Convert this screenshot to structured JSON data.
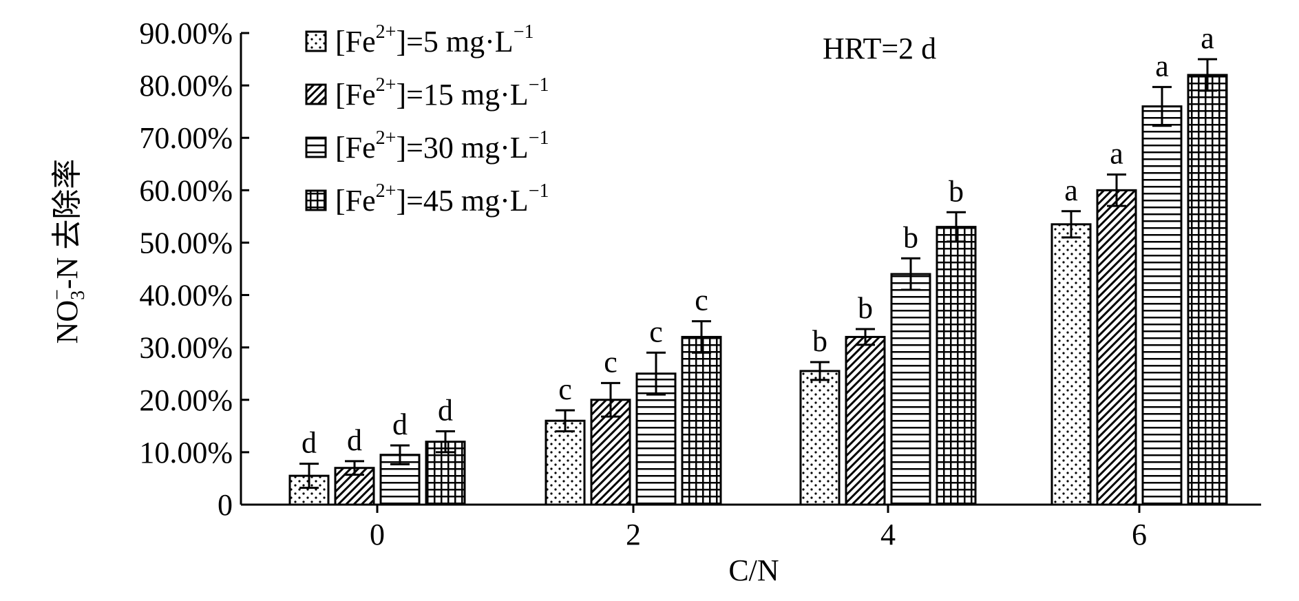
{
  "chart_data": {
    "type": "bar",
    "annotation": "HRT=2 d",
    "xlabel": "C/N",
    "ylabel": {
      "prefix": "NO",
      "sub": "3",
      "sup": "−",
      "suffix": "-N 去除率"
    },
    "categories": [
      "0",
      "2",
      "4",
      "6"
    ],
    "ylim": [
      0,
      0.9
    ],
    "yticks": [
      {
        "value": 0,
        "label": "0"
      },
      {
        "value": 0.1,
        "label": "10.00%"
      },
      {
        "value": 0.2,
        "label": "20.00%"
      },
      {
        "value": 0.3,
        "label": "30.00%"
      },
      {
        "value": 0.4,
        "label": "40.00%"
      },
      {
        "value": 0.5,
        "label": "50.00%"
      },
      {
        "value": 0.6,
        "label": "60.00%"
      },
      {
        "value": 0.7,
        "label": "70.00%"
      },
      {
        "value": 0.8,
        "label": "80.00%"
      },
      {
        "value": 0.9,
        "label": "90.00%"
      }
    ],
    "legend_placement": "top-left",
    "series": [
      {
        "legend": {
          "pre": "[Fe",
          "sup1": "2+",
          "mid": "]=5 mg·L",
          "sup2": "−1"
        },
        "pattern": "dots",
        "values": [
          0.055,
          0.16,
          0.255,
          0.535
        ],
        "errors": [
          0.023,
          0.02,
          0.017,
          0.025
        ],
        "letters": [
          "d",
          "c",
          "b",
          "a"
        ]
      },
      {
        "legend": {
          "pre": "[Fe",
          "sup1": "2+",
          "mid": "]=15 mg·L",
          "sup2": "−1"
        },
        "pattern": "diagonal",
        "values": [
          0.07,
          0.2,
          0.32,
          0.6
        ],
        "errors": [
          0.013,
          0.032,
          0.015,
          0.03
        ],
        "letters": [
          "d",
          "c",
          "b",
          "a"
        ]
      },
      {
        "legend": {
          "pre": "[Fe",
          "sup1": "2+",
          "mid": "]=30 mg·L",
          "sup2": "−1"
        },
        "pattern": "horizontal",
        "values": [
          0.095,
          0.25,
          0.44,
          0.76
        ],
        "errors": [
          0.018,
          0.04,
          0.03,
          0.037
        ],
        "letters": [
          "d",
          "c",
          "b",
          "a"
        ]
      },
      {
        "legend": {
          "pre": "[Fe",
          "sup1": "2+",
          "mid": "]=45 mg·L",
          "sup2": "−1"
        },
        "pattern": "grid",
        "values": [
          0.12,
          0.32,
          0.53,
          0.82
        ],
        "errors": [
          0.02,
          0.03,
          0.028,
          0.03
        ],
        "letters": [
          "d",
          "c",
          "b",
          "a"
        ]
      }
    ]
  }
}
